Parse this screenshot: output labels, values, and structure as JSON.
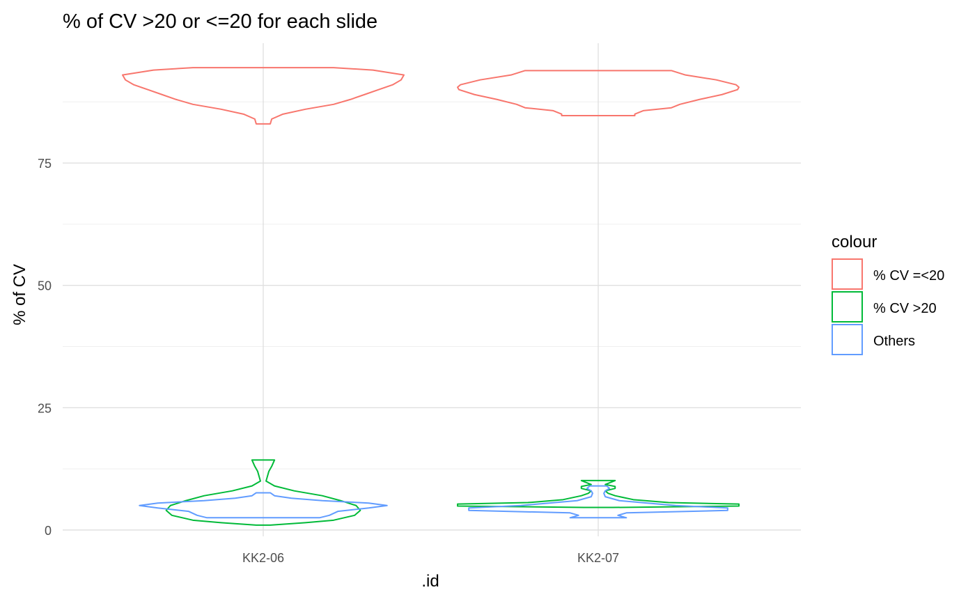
{
  "chart_data": {
    "type": "violin",
    "title": "% of CV >20 or <=20 for each slide",
    "xlabel": ".id",
    "ylabel": "% of CV",
    "categories": [
      "KK2-06",
      "KK2-07"
    ],
    "yticks": [
      0,
      25,
      50,
      75
    ],
    "ylim": [
      -1.3,
      99.5
    ],
    "grid": true,
    "legend": {
      "title": "colour",
      "placement": "right"
    },
    "series": [
      {
        "name": "% CV =<20",
        "color": "#F8766D",
        "groups": [
          {
            "category": "KK2-06",
            "min": 83.0,
            "max": 94.5,
            "profile": [
              [
                83.0,
                0.05
              ],
              [
                84.0,
                0.06
              ],
              [
                85.0,
                0.14
              ],
              [
                86.0,
                0.3
              ],
              [
                87.0,
                0.5
              ],
              [
                88.0,
                0.62
              ],
              [
                89.0,
                0.72
              ],
              [
                90.0,
                0.82
              ],
              [
                91.0,
                0.92
              ],
              [
                92.0,
                0.98
              ],
              [
                93.0,
                1.0
              ],
              [
                94.0,
                0.78
              ],
              [
                94.5,
                0.5
              ]
            ]
          },
          {
            "category": "KK2-07",
            "min": 84.7,
            "max": 93.9,
            "profile": [
              [
                84.7,
                0.26
              ],
              [
                85.0,
                0.26
              ],
              [
                85.7,
                0.32
              ],
              [
                86.3,
                0.52
              ],
              [
                87.0,
                0.58
              ],
              [
                88.0,
                0.72
              ],
              [
                89.0,
                0.88
              ],
              [
                90.0,
                0.99
              ],
              [
                90.5,
                1.0
              ],
              [
                91.0,
                0.98
              ],
              [
                92.0,
                0.84
              ],
              [
                93.0,
                0.62
              ],
              [
                93.9,
                0.52
              ]
            ]
          }
        ]
      },
      {
        "name": "% CV >20",
        "color": "#00BA38",
        "groups": [
          {
            "category": "KK2-06",
            "min": 1.0,
            "max": 14.3,
            "profile": [
              [
                1.0,
                0.05
              ],
              [
                1.5,
                0.3
              ],
              [
                2.0,
                0.5
              ],
              [
                3.0,
                0.65
              ],
              [
                4.0,
                0.69
              ],
              [
                5.0,
                0.66
              ],
              [
                6.0,
                0.55
              ],
              [
                7.0,
                0.42
              ],
              [
                8.0,
                0.22
              ],
              [
                9.0,
                0.08
              ],
              [
                10.0,
                0.02
              ],
              [
                11.0,
                0.03
              ],
              [
                12.0,
                0.04
              ],
              [
                13.0,
                0.06
              ],
              [
                14.3,
                0.08
              ]
            ]
          },
          {
            "category": "KK2-07",
            "min": 4.6,
            "max": 10.1,
            "profile": [
              [
                4.6,
                0.1
              ],
              [
                4.9,
                1.0
              ],
              [
                5.3,
                1.0
              ],
              [
                5.6,
                0.5
              ],
              [
                6.2,
                0.25
              ],
              [
                7.0,
                0.12
              ],
              [
                7.5,
                0.07
              ],
              [
                8.0,
                0.05
              ],
              [
                8.5,
                0.12
              ],
              [
                8.9,
                0.12
              ],
              [
                9.3,
                0.05
              ],
              [
                10.1,
                0.12
              ]
            ]
          }
        ]
      },
      {
        "name": "Others",
        "color": "#619CFF",
        "groups": [
          {
            "category": "KK2-06",
            "min": 2.5,
            "max": 7.6,
            "profile": [
              [
                2.5,
                0.4
              ],
              [
                3.0,
                0.47
              ],
              [
                3.8,
                0.53
              ],
              [
                4.5,
                0.75
              ],
              [
                5.0,
                0.88
              ],
              [
                5.5,
                0.75
              ],
              [
                6.0,
                0.42
              ],
              [
                6.5,
                0.2
              ],
              [
                7.0,
                0.08
              ],
              [
                7.6,
                0.05
              ]
            ]
          },
          {
            "category": "KK2-07",
            "min": 2.5,
            "max": 9.0,
            "profile": [
              [
                2.5,
                0.2
              ],
              [
                3.0,
                0.14
              ],
              [
                3.5,
                0.2
              ],
              [
                4.0,
                0.92
              ],
              [
                4.5,
                0.92
              ],
              [
                5.0,
                0.55
              ],
              [
                5.5,
                0.35
              ],
              [
                6.0,
                0.15
              ],
              [
                6.8,
                0.05
              ],
              [
                7.5,
                0.04
              ],
              [
                8.0,
                0.05
              ],
              [
                8.5,
                0.08
              ],
              [
                9.0,
                0.06
              ]
            ]
          }
        ]
      }
    ]
  }
}
